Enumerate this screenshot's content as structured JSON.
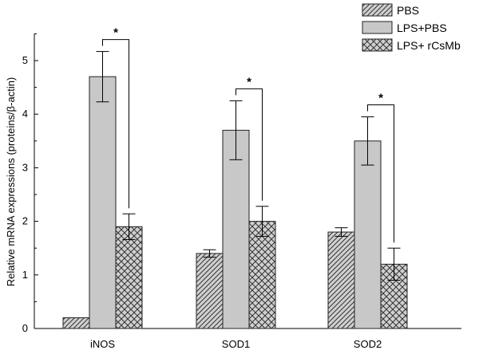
{
  "chart_data": {
    "type": "bar",
    "categories": [
      "iNOS",
      "SOD1",
      "SOD2"
    ],
    "series": [
      {
        "name": "PBS",
        "values": [
          0.2,
          1.4,
          1.8
        ],
        "errors": [
          0.0,
          0.07,
          0.08
        ],
        "pattern": "diagonal-hatch"
      },
      {
        "name": "LPS+PBS",
        "values": [
          4.7,
          3.7,
          3.5
        ],
        "errors": [
          0.47,
          0.55,
          0.45
        ],
        "pattern": "solid-gray"
      },
      {
        "name": "LPS+ rCsMb",
        "values": [
          1.9,
          2.0,
          1.2
        ],
        "errors": [
          0.24,
          0.28,
          0.3
        ],
        "pattern": "crosshatch"
      }
    ],
    "significance": [
      {
        "category": "iNOS",
        "between": [
          "LPS+PBS",
          "LPS+ rCsMb"
        ],
        "label": "*"
      },
      {
        "category": "SOD1",
        "between": [
          "LPS+PBS",
          "LPS+ rCsMb"
        ],
        "label": "*"
      },
      {
        "category": "SOD2",
        "between": [
          "LPS+PBS",
          "LPS+ rCsMb"
        ],
        "label": "*"
      }
    ],
    "xlabel": "",
    "ylabel": "Relative mRNA expressions (proteins/β-actin)",
    "ylim": [
      0,
      5.5
    ],
    "yticks": [
      0,
      1,
      2,
      3,
      4,
      5
    ],
    "legend_position": "top-right",
    "grid": false,
    "colors": {
      "bar_fill": "#c8c8c8",
      "stroke": "#222222",
      "background": "#ffffff"
    }
  }
}
